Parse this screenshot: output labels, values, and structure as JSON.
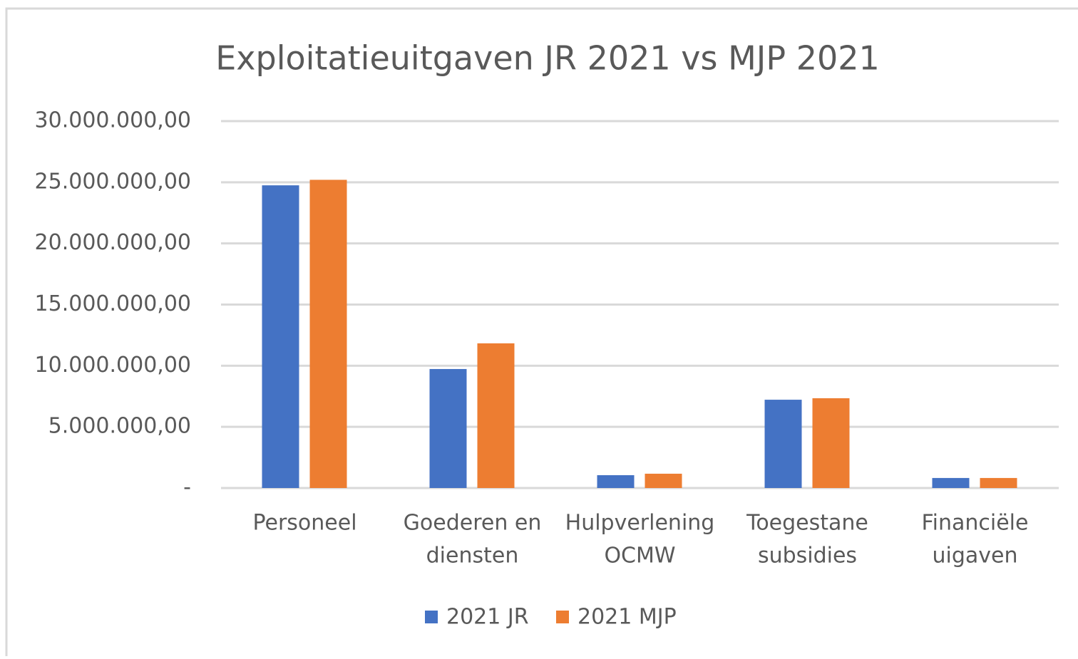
{
  "chart_data": {
    "type": "bar",
    "title": "Exploitatieuitgaven JR 2021 vs MJP 2021",
    "categories": [
      [
        "Personeel"
      ],
      [
        "Goederen en",
        "diensten"
      ],
      [
        "Hulpverlening",
        "OCMW"
      ],
      [
        "Toegestane",
        "subsidies"
      ],
      [
        "Financiële",
        "uigaven"
      ]
    ],
    "series": [
      {
        "name": "2021 JR",
        "color": "#4472c4",
        "values": [
          24750000,
          9730000,
          1050000,
          7220000,
          820000
        ]
      },
      {
        "name": "2021 MJP",
        "color": "#ed7d31",
        "values": [
          25200000,
          11830000,
          1170000,
          7340000,
          820000
        ]
      }
    ],
    "ylim": [
      0,
      30000000
    ],
    "yticks": [
      {
        "value": 0,
        "label": "-"
      },
      {
        "value": 5000000,
        "label": "5.000.000,00"
      },
      {
        "value": 10000000,
        "label": "10.000.000,00"
      },
      {
        "value": 15000000,
        "label": "15.000.000,00"
      },
      {
        "value": 20000000,
        "label": "20.000.000,00"
      },
      {
        "value": 25000000,
        "label": "25.000.000,00"
      },
      {
        "value": 30000000,
        "label": "30.000.000,00"
      }
    ],
    "grid": true,
    "legend": "bottom"
  }
}
